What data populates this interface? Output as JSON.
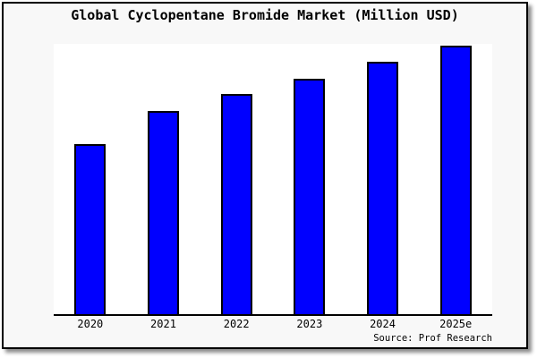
{
  "header": {
    "title": "Global Cyclopentane Bromide Market (Million USD)"
  },
  "footer": {
    "source": "Source: Prof Research"
  },
  "chart_data": {
    "type": "bar",
    "title": "Global Cyclopentane Bromide Market (Million USD)",
    "categories": [
      "2020",
      "2021",
      "2022",
      "2023",
      "2024",
      "2025e"
    ],
    "values": [
      63.3,
      75.7,
      82.0,
      87.7,
      94.0,
      100.0
    ],
    "values_note": "no y-axis or data labels shown in the image; values are relative bar heights as percent of the tallest (2025e) bar",
    "xlabel": "",
    "ylabel": "",
    "ylim": [
      0,
      100
    ],
    "grid": false,
    "legend": "none",
    "y_axis_ticks": "none",
    "source": "Source: Prof Research",
    "colors": {
      "bar_fill": "#0000ff",
      "bar_border": "#000000",
      "figure_background": "#f8f8f8",
      "plot_background": "#ffffff",
      "border": "#000000"
    }
  }
}
